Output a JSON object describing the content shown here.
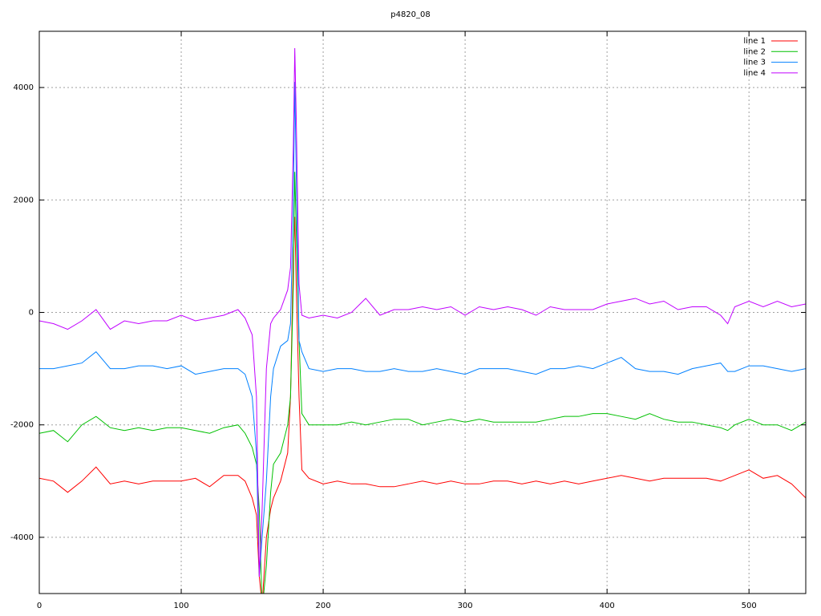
{
  "chart_data": {
    "type": "line",
    "title": "p4820_08",
    "x": [
      0,
      10,
      20,
      30,
      40,
      50,
      60,
      70,
      80,
      90,
      100,
      110,
      120,
      130,
      140,
      145,
      150,
      153,
      155,
      157,
      160,
      163,
      165,
      170,
      175,
      177,
      179,
      180,
      181,
      183,
      185,
      190,
      200,
      210,
      220,
      230,
      240,
      250,
      260,
      270,
      280,
      290,
      300,
      310,
      320,
      330,
      340,
      350,
      360,
      370,
      380,
      390,
      400,
      410,
      420,
      430,
      440,
      450,
      460,
      470,
      480,
      485,
      490,
      500,
      510,
      520,
      530,
      540
    ],
    "series": [
      {
        "name": "line 1",
        "color": "#ff0000",
        "values": [
          -2950,
          -3000,
          -3200,
          -3000,
          -2750,
          -3050,
          -3000,
          -3050,
          -3000,
          -3000,
          -3000,
          -2950,
          -3100,
          -2900,
          -2900,
          -3000,
          -3300,
          -3600,
          -4700,
          -5200,
          -4000,
          -3500,
          -3300,
          -3000,
          -2500,
          -1500,
          1000,
          1700,
          500,
          -1500,
          -2800,
          -2950,
          -3050,
          -3000,
          -3050,
          -3050,
          -3100,
          -3100,
          -3050,
          -3000,
          -3050,
          -3000,
          -3050,
          -3050,
          -3000,
          -3000,
          -3050,
          -3000,
          -3050,
          -3000,
          -3050,
          -3000,
          -2950,
          -2900,
          -2950,
          -3000,
          -2950,
          -2950,
          -2950,
          -2950,
          -3000,
          -2950,
          -2900,
          -2800,
          -2950,
          -2900,
          -3050,
          -3300
        ]
      },
      {
        "name": "line 2",
        "color": "#00c000",
        "values": [
          -2150,
          -2100,
          -2300,
          -2000,
          -1850,
          -2050,
          -2100,
          -2050,
          -2100,
          -2050,
          -2050,
          -2100,
          -2150,
          -2050,
          -2000,
          -2150,
          -2400,
          -2700,
          -3500,
          -5300,
          -4500,
          -3200,
          -2700,
          -2500,
          -2000,
          -1500,
          500,
          2500,
          1500,
          -500,
          -1800,
          -2000,
          -2000,
          -2000,
          -1950,
          -2000,
          -1950,
          -1900,
          -1900,
          -2000,
          -1950,
          -1900,
          -1950,
          -1900,
          -1950,
          -1950,
          -1950,
          -1950,
          -1900,
          -1850,
          -1850,
          -1800,
          -1800,
          -1850,
          -1900,
          -1800,
          -1900,
          -1950,
          -1950,
          -2000,
          -2050,
          -2100,
          -2000,
          -1900,
          -2000,
          -2000,
          -2100,
          -1950
        ]
      },
      {
        "name": "line 3",
        "color": "#0080ff",
        "values": [
          -1000,
          -1000,
          -950,
          -900,
          -700,
          -1000,
          -1000,
          -950,
          -950,
          -1000,
          -950,
          -1100,
          -1050,
          -1000,
          -1000,
          -1100,
          -1500,
          -2500,
          -4700,
          -4000,
          -3000,
          -1500,
          -1000,
          -600,
          -500,
          -200,
          2000,
          4100,
          2500,
          -500,
          -700,
          -1000,
          -1050,
          -1000,
          -1000,
          -1050,
          -1050,
          -1000,
          -1050,
          -1050,
          -1000,
          -1050,
          -1100,
          -1000,
          -1000,
          -1000,
          -1050,
          -1100,
          -1000,
          -1000,
          -950,
          -1000,
          -900,
          -800,
          -1000,
          -1050,
          -1050,
          -1100,
          -1000,
          -950,
          -900,
          -1050,
          -1050,
          -950,
          -950,
          -1000,
          -1050,
          -1000
        ]
      },
      {
        "name": "line 4",
        "color": "#c000ff",
        "values": [
          -150,
          -200,
          -300,
          -150,
          50,
          -300,
          -150,
          -200,
          -150,
          -150,
          -50,
          -150,
          -100,
          -50,
          50,
          -100,
          -400,
          -1500,
          -4700,
          -3500,
          -1000,
          -200,
          -100,
          50,
          400,
          800,
          3000,
          4700,
          3500,
          500,
          -50,
          -100,
          -50,
          -100,
          0,
          250,
          -50,
          50,
          50,
          100,
          50,
          100,
          -50,
          100,
          50,
          100,
          50,
          -50,
          100,
          50,
          50,
          50,
          150,
          200,
          250,
          150,
          200,
          50,
          100,
          100,
          -50,
          -200,
          100,
          200,
          100,
          200,
          100,
          150
        ]
      }
    ],
    "xlim": [
      0,
      540
    ],
    "ylim": [
      -5000,
      5000
    ],
    "xticks": [
      0,
      100,
      200,
      300,
      400,
      500
    ],
    "yticks": [
      -4000,
      -2000,
      0,
      2000,
      4000
    ],
    "grid": true,
    "legend": "top-right"
  }
}
